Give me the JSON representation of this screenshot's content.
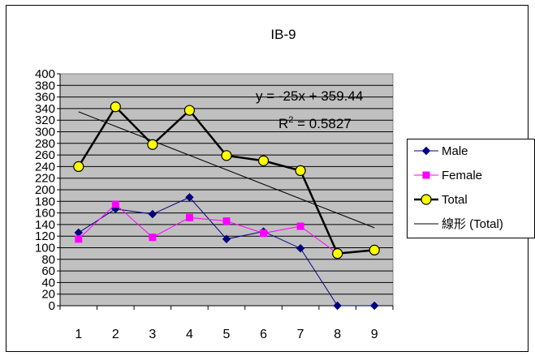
{
  "chart_data": {
    "type": "line",
    "title": "IB-9",
    "categories": [
      "1",
      "2",
      "3",
      "4",
      "5",
      "6",
      "7",
      "8",
      "9"
    ],
    "ylim": [
      0,
      400
    ],
    "yticks": [
      "0",
      "20",
      "40",
      "60",
      "80",
      "100",
      "120",
      "140",
      "160",
      "180",
      "200",
      "220",
      "240",
      "260",
      "280",
      "300",
      "320",
      "340",
      "360",
      "380",
      "400"
    ],
    "grid": true,
    "legend_position": "right",
    "series": [
      {
        "name": "Male",
        "color": "#000080",
        "marker": "diamond",
        "values": [
          126,
          167,
          158,
          187,
          115,
          128,
          99,
          0,
          0
        ]
      },
      {
        "name": "Female",
        "color": "#ff00ff",
        "marker": "square",
        "values": [
          115,
          175,
          118,
          152,
          146,
          125,
          137,
          90,
          null
        ]
      },
      {
        "name": "Total",
        "color": "#000000",
        "marker": "circle",
        "values": [
          240,
          343,
          278,
          337,
          259,
          250,
          233,
          90,
          96
        ]
      },
      {
        "name": "線形 (Total)",
        "color": "#000000",
        "marker": "none",
        "trendline": true,
        "values": [
          334.44,
          309.44,
          284.44,
          259.44,
          234.44,
          209.44,
          184.44,
          159.44,
          134.44
        ]
      }
    ],
    "annotations": {
      "equation": "y = -25x + 359.44",
      "r_squared_prefix": "R",
      "r_squared_sup": "2",
      "r_squared_value": " = 0.5827"
    }
  }
}
